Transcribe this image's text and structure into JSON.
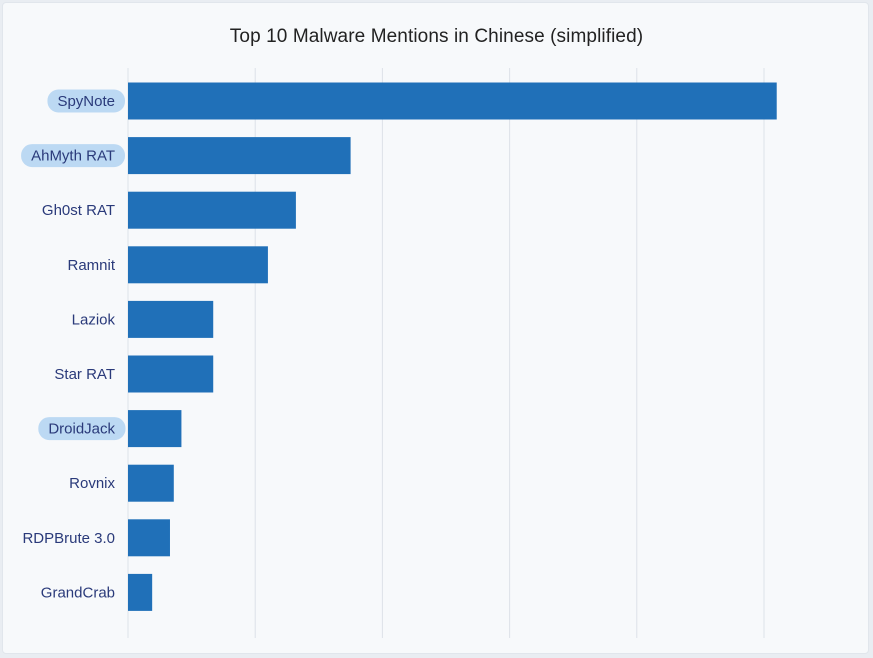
{
  "chart_data": {
    "type": "bar",
    "orientation": "horizontal",
    "title": "Top 10 Malware Mentions in Chinese (simplified)",
    "categories": [
      "SpyNote",
      "AhMyth RAT",
      "Gh0st RAT",
      "Ramnit",
      "Laziok",
      "Star RAT",
      "DroidJack",
      "Rovnix",
      "RDPBrute 3.0",
      "GrandCrab"
    ],
    "values": [
      51,
      17.5,
      13.2,
      11,
      6.7,
      6.7,
      4.2,
      3.6,
      3.3,
      1.9
    ],
    "highlighted": [
      "SpyNote",
      "AhMyth RAT",
      "DroidJack"
    ],
    "xlim": [
      0,
      50
    ],
    "x_gridlines": [
      0,
      10,
      20,
      30,
      40,
      50
    ],
    "grid": true,
    "bar_color": "#2070b8",
    "highlight_color": "#bcd9f3",
    "label_color": "#2a3a7a",
    "gridline_color": "#dde2e8"
  }
}
